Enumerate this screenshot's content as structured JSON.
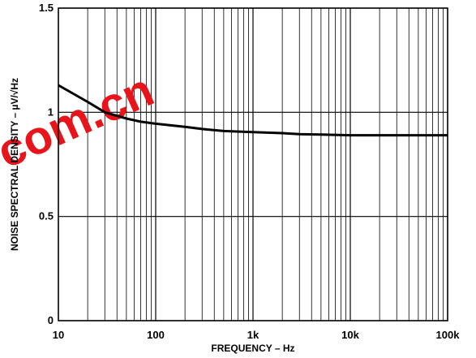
{
  "chart_data": {
    "type": "line",
    "title": "",
    "xlabel": "FREQUENCY – Hz",
    "ylabel": "NOISE SPECTRAL DENSITY – µV/√Hz",
    "x_scale": "log",
    "xlim": [
      10,
      100000
    ],
    "ylim": [
      0,
      1.5
    ],
    "x_ticks": [
      {
        "value": 10,
        "label": "10"
      },
      {
        "value": 100,
        "label": "100"
      },
      {
        "value": 1000,
        "label": "1k"
      },
      {
        "value": 10000,
        "label": "10k"
      },
      {
        "value": 100000,
        "label": "100k"
      }
    ],
    "y_ticks": [
      {
        "value": 0,
        "label": "0"
      },
      {
        "value": 0.5,
        "label": "0.5"
      },
      {
        "value": 1,
        "label": "1"
      },
      {
        "value": 1.5,
        "label": "1.5"
      }
    ],
    "grid": true,
    "series": [
      {
        "color": "#000000",
        "x": [
          10,
          20,
          30,
          50,
          70,
          100,
          200,
          300,
          500,
          1000,
          2000,
          3000,
          5000,
          10000,
          20000,
          50000,
          100000
        ],
        "y": [
          1.13,
          1.05,
          1.0,
          0.97,
          0.955,
          0.945,
          0.93,
          0.92,
          0.91,
          0.905,
          0.9,
          0.895,
          0.893,
          0.89,
          0.89,
          0.89,
          0.89
        ]
      }
    ],
    "watermark": {
      "text": "com.cn",
      "color": "#e8141b"
    }
  }
}
